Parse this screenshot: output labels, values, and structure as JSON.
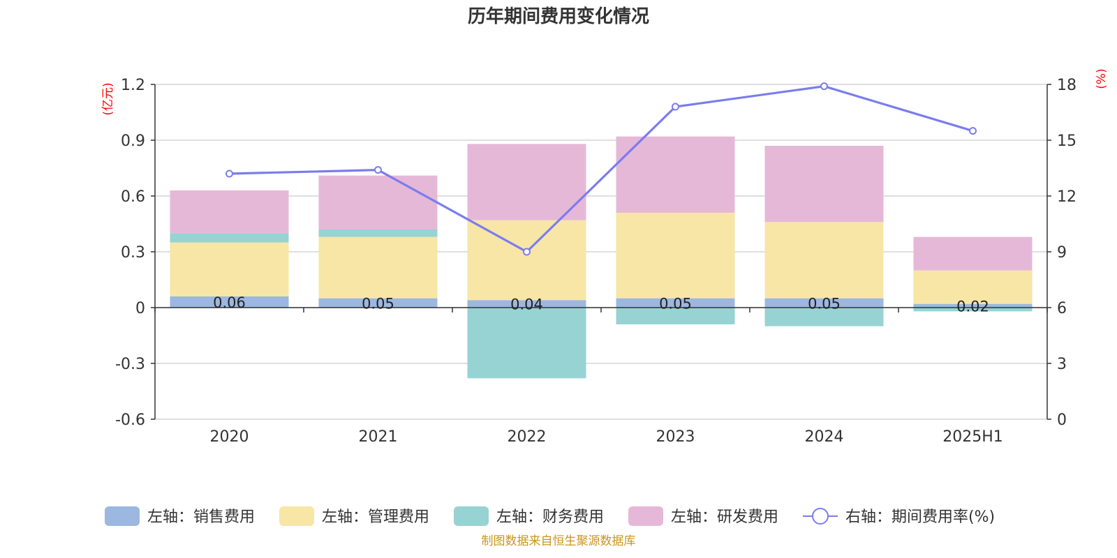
{
  "chart_data": {
    "type": "bar",
    "title": "历年期间费用变化情况",
    "categories": [
      "2020",
      "2021",
      "2022",
      "2023",
      "2024",
      "2025H1"
    ],
    "left_axis": {
      "unit": "(亿元)",
      "ylim": [
        -0.6,
        1.2
      ],
      "ticks": [
        "-0.6",
        "-0.3",
        "0",
        "0.3",
        "0.6",
        "0.9",
        "1.2"
      ],
      "tick_values": [
        -0.6,
        -0.3,
        0,
        0.3,
        0.6,
        0.9,
        1.2
      ]
    },
    "right_axis": {
      "unit": "(%)",
      "ylim": [
        0,
        18
      ],
      "ticks": [
        "0",
        "3",
        "6",
        "9",
        "12",
        "15",
        "18"
      ],
      "tick_values": [
        0,
        3,
        6,
        9,
        12,
        15,
        18
      ]
    },
    "series": [
      {
        "name": "左轴：销售费用",
        "axis": "left",
        "kind": "bar",
        "color": "#9cb7e0",
        "values": [
          0.06,
          0.05,
          0.04,
          0.05,
          0.05,
          0.02
        ],
        "labels": [
          "0.06",
          "0.05",
          "0.04",
          "0.05",
          "0.05",
          "0.02"
        ]
      },
      {
        "name": "左轴：管理费用",
        "axis": "left",
        "kind": "bar",
        "color": "#f7e6a6",
        "values": [
          0.29,
          0.33,
          0.43,
          0.46,
          0.41,
          0.18
        ]
      },
      {
        "name": "左轴：财务费用",
        "axis": "left",
        "kind": "bar",
        "color": "#97d3d3",
        "values": [
          0.05,
          0.04,
          -0.38,
          -0.09,
          -0.1,
          -0.02
        ]
      },
      {
        "name": "左轴：研发费用",
        "axis": "left",
        "kind": "bar",
        "color": "#e6b8d8",
        "values": [
          0.23,
          0.29,
          0.41,
          0.41,
          0.41,
          0.18
        ]
      },
      {
        "name": "右轴：期间费用率(%)",
        "axis": "right",
        "kind": "line",
        "color": "#7b7cee",
        "values": [
          13.2,
          13.4,
          9.0,
          16.8,
          17.9,
          15.5
        ]
      }
    ],
    "grid": true,
    "legend_position": "bottom"
  },
  "source_note": "制图数据来自恒生聚源数据库"
}
